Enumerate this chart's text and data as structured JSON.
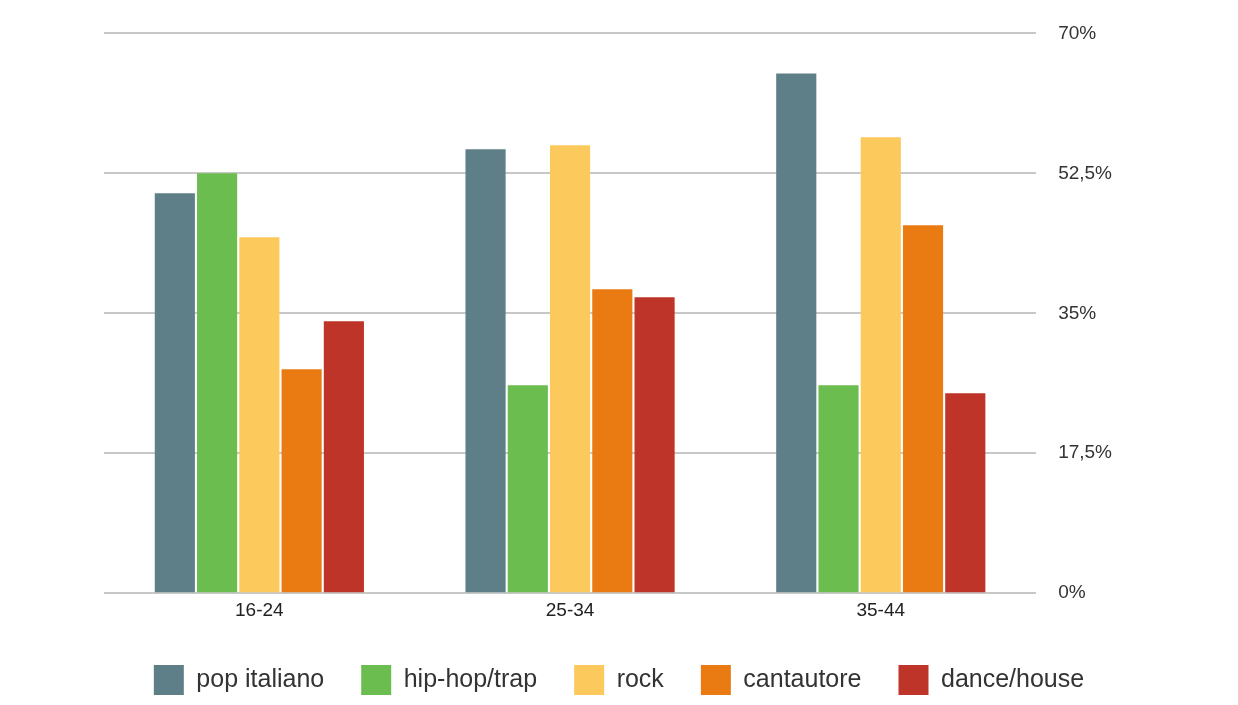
{
  "chart_data": {
    "type": "bar",
    "categories": [
      "16-24",
      "25-34",
      "35-44"
    ],
    "series": [
      {
        "name": "pop italiano",
        "color": "#5e7f87",
        "values": [
          50,
          55.5,
          65
        ]
      },
      {
        "name": "hip-hop/trap",
        "color": "#6cbd4f",
        "values": [
          52.5,
          26,
          26
        ]
      },
      {
        "name": "rock",
        "color": "#fcc95c",
        "values": [
          44.5,
          56,
          57
        ]
      },
      {
        "name": "cantautore",
        "color": "#e97b12",
        "values": [
          28,
          38,
          46
        ]
      },
      {
        "name": "dance/house",
        "color": "#bf3429",
        "values": [
          34,
          37,
          25
        ]
      }
    ],
    "ylim": [
      0,
      70
    ],
    "yticks": [
      {
        "value": 0,
        "label": "0%"
      },
      {
        "value": 17.5,
        "label": "17,5%"
      },
      {
        "value": 35,
        "label": "35%"
      },
      {
        "value": 52.5,
        "label": "52,5%"
      },
      {
        "value": 70,
        "label": "70%"
      }
    ],
    "grid": "y",
    "legend": "bottom"
  }
}
